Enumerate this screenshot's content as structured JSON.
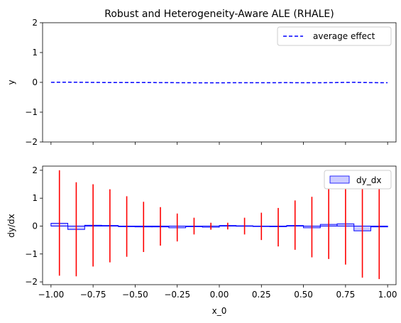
{
  "colors": {
    "average_effect": "#0000ff",
    "bin_fill": "#ccccff",
    "bin_edge": "#0000ff",
    "heterogeneity": "#ff0000",
    "axes": "#000000"
  },
  "chart_data": [
    {
      "type": "line",
      "title": "Robust and Heterogeneity-Aware ALE (RHALE)",
      "xlabel": "",
      "ylabel": "y",
      "xlim": [
        -1.05,
        1.05
      ],
      "ylim": [
        -2,
        2
      ],
      "xticks": [
        -1.0,
        -0.75,
        -0.5,
        -0.25,
        0.0,
        0.25,
        0.5,
        0.75,
        1.0
      ],
      "xtick_labels_visible": false,
      "yticks": [
        -2,
        -1,
        0,
        1,
        2
      ],
      "ytick_labels": [
        "−2",
        "−1",
        "0",
        "1",
        "2"
      ],
      "legend": {
        "position": "top-right",
        "entries": [
          "average effect"
        ]
      },
      "series": [
        {
          "name": "average effect",
          "style": "dashed",
          "x": [
            -1.0,
            -0.9,
            -0.8,
            -0.7,
            -0.6,
            -0.5,
            -0.4,
            -0.3,
            -0.2,
            -0.1,
            0.0,
            0.1,
            0.2,
            0.3,
            0.4,
            0.5,
            0.6,
            0.7,
            0.8,
            0.9,
            1.0
          ],
          "values": [
            0.0,
            0.005,
            0.0,
            -0.005,
            -0.005,
            -0.005,
            -0.008,
            -0.01,
            -0.012,
            -0.015,
            -0.015,
            -0.013,
            -0.012,
            -0.012,
            -0.01,
            -0.012,
            -0.012,
            -0.008,
            0.0,
            -0.01,
            -0.012
          ]
        }
      ]
    },
    {
      "type": "bar",
      "title": "",
      "xlabel": "x_0",
      "ylabel": "dy/dx",
      "xlim": [
        -1.05,
        1.05
      ],
      "ylim": [
        -2.1,
        2.15
      ],
      "xticks": [
        -1.0,
        -0.75,
        -0.5,
        -0.25,
        0.0,
        0.25,
        0.5,
        0.75,
        1.0
      ],
      "xtick_labels": [
        "−1.00",
        "−0.75",
        "−0.50",
        "−0.25",
        "0.00",
        "0.25",
        "0.50",
        "0.75",
        "1.00"
      ],
      "yticks": [
        -2,
        -1,
        0,
        1,
        2
      ],
      "ytick_labels": [
        "−2",
        "−1",
        "0",
        "1",
        "2"
      ],
      "legend": {
        "position": "top-right",
        "entries": [
          "dy_dx"
        ]
      },
      "bins": {
        "name": "dy_dx",
        "edges": [
          -1.0,
          -0.9,
          -0.8,
          -0.7,
          -0.6,
          -0.5,
          -0.4,
          -0.3,
          -0.2,
          -0.1,
          0.0,
          0.1,
          0.2,
          0.3,
          0.4,
          0.5,
          0.6,
          0.7,
          0.8,
          0.9,
          1.0
        ],
        "values": [
          0.1,
          -0.12,
          0.03,
          0.02,
          -0.02,
          -0.03,
          -0.03,
          -0.06,
          -0.02,
          -0.04,
          0.02,
          0.01,
          0.0,
          -0.02,
          0.02,
          -0.06,
          0.06,
          0.08,
          -0.17,
          -0.03
        ]
      },
      "heterogeneity": {
        "x": [
          -0.95,
          -0.85,
          -0.75,
          -0.65,
          -0.55,
          -0.45,
          -0.35,
          -0.25,
          -0.15,
          -0.05,
          0.05,
          0.15,
          0.25,
          0.35,
          0.45,
          0.55,
          0.65,
          0.75,
          0.85,
          0.95
        ],
        "low": [
          -1.78,
          -1.8,
          -1.45,
          -1.3,
          -1.1,
          -0.93,
          -0.7,
          -0.55,
          -0.3,
          -0.13,
          -0.12,
          -0.3,
          -0.5,
          -0.73,
          -0.85,
          -1.12,
          -1.18,
          -1.38,
          -1.85,
          -1.9
        ],
        "high": [
          2.0,
          1.57,
          1.5,
          1.32,
          1.07,
          0.87,
          0.68,
          0.45,
          0.3,
          0.12,
          0.12,
          0.3,
          0.48,
          0.65,
          0.92,
          1.05,
          1.38,
          1.5,
          1.5,
          1.85
        ]
      }
    }
  ]
}
